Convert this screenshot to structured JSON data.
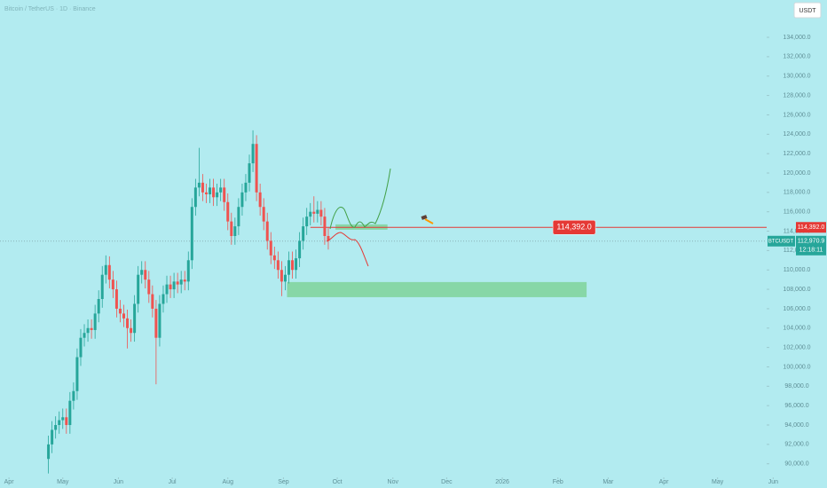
{
  "chart_data": {
    "type": "candlestick",
    "title": "Bitcoin / TetherUS · 1D · Binance",
    "currency": "USDT",
    "symbol": "BTCUSDT",
    "countdown": "12:18:11",
    "up_color": "#26a69a",
    "down_color": "#ef5350",
    "x": [
      22,
      24,
      26,
      28,
      30,
      32,
      34,
      36,
      38,
      40,
      42,
      44,
      46,
      48,
      50,
      52,
      54,
      56,
      58,
      60,
      62,
      64,
      66,
      68,
      70,
      72,
      74,
      76,
      78,
      80,
      82,
      84,
      86,
      88,
      90,
      92,
      94,
      96,
      98,
      100,
      102,
      104,
      106,
      108,
      110,
      112,
      114,
      116,
      118,
      120,
      122,
      124,
      126,
      128,
      130,
      132,
      134,
      136,
      138,
      140,
      142,
      144,
      146,
      148,
      150,
      152,
      154,
      156,
      158,
      160,
      162,
      164,
      166,
      168,
      170,
      172,
      174,
      176,
      178
    ],
    "open": [
      90500,
      92000,
      93500,
      94000,
      94500,
      94800,
      94000,
      96500,
      97500,
      101000,
      103000,
      103500,
      104000,
      103800,
      105500,
      107000,
      109500,
      110500,
      109000,
      108000,
      106000,
      105500,
      105000,
      104000,
      103500,
      106500,
      109500,
      110000,
      109000,
      107500,
      106000,
      103000,
      106500,
      107500,
      108500,
      108000,
      108800,
      108500,
      109000,
      108800,
      111000,
      116500,
      118500,
      119000,
      118000,
      117800,
      118500,
      117500,
      118000,
      118500,
      117000,
      115000,
      113500,
      114500,
      116500,
      118000,
      119000,
      121000,
      123000,
      118000,
      116500,
      115000,
      113000,
      111500,
      111000,
      110000,
      108800,
      109500,
      111000,
      110000,
      111200,
      113000,
      114500,
      115500,
      116000,
      115800,
      116200,
      115500,
      113500
    ],
    "high": [
      92900,
      94400,
      94900,
      95400,
      95700,
      95700,
      97400,
      98400,
      101900,
      103900,
      104400,
      104900,
      104900,
      106400,
      107900,
      110400,
      111500,
      111400,
      109900,
      108900,
      106900,
      106400,
      105900,
      104900,
      107400,
      110400,
      110900,
      110900,
      109900,
      108400,
      106900,
      107400,
      108400,
      109400,
      109400,
      109700,
      109700,
      109900,
      109900,
      111900,
      117400,
      119400,
      122600,
      119900,
      118900,
      119400,
      119400,
      118900,
      119400,
      119400,
      117900,
      115900,
      115400,
      117400,
      118900,
      119900,
      121900,
      124400,
      123900,
      118900,
      117400,
      115900,
      113900,
      112400,
      111900,
      110900,
      110400,
      111900,
      111900,
      112100,
      113900,
      115400,
      116400,
      116900,
      117600,
      117100,
      117100,
      116400,
      114400
    ],
    "low": [
      89000,
      91100,
      92600,
      93100,
      93600,
      93100,
      93100,
      95600,
      96600,
      100100,
      102100,
      102600,
      102900,
      102900,
      104600,
      106100,
      108600,
      108100,
      107100,
      105100,
      104600,
      104100,
      101900,
      102600,
      102600,
      105600,
      108600,
      108100,
      106600,
      105100,
      98200,
      102100,
      105600,
      106600,
      107100,
      107100,
      107600,
      107600,
      107900,
      107900,
      110100,
      115600,
      117600,
      117100,
      116900,
      116900,
      116600,
      116600,
      117100,
      116100,
      114100,
      112600,
      112600,
      113600,
      115600,
      117100,
      118100,
      120100,
      117100,
      115600,
      114100,
      112100,
      110600,
      110100,
      109100,
      107300,
      107900,
      108600,
      109100,
      109100,
      110300,
      112100,
      113600,
      114600,
      114900,
      114900,
      114600,
      112600,
      112100
    ],
    "close": [
      92000,
      93500,
      94000,
      94500,
      94800,
      94000,
      96500,
      97500,
      101000,
      103000,
      103500,
      104000,
      103800,
      105500,
      107000,
      109500,
      110500,
      109000,
      108000,
      106000,
      105500,
      105000,
      104000,
      103500,
      106500,
      109500,
      110000,
      109000,
      107500,
      106000,
      103000,
      106500,
      107500,
      108500,
      108000,
      108800,
      108500,
      109000,
      108800,
      111000,
      116500,
      118500,
      119000,
      118000,
      117800,
      118500,
      117500,
      118000,
      118500,
      117000,
      115000,
      113500,
      114500,
      116500,
      118000,
      119000,
      121000,
      123000,
      118000,
      116500,
      115000,
      113000,
      111500,
      111000,
      110000,
      108800,
      109500,
      111000,
      110000,
      111200,
      113000,
      114500,
      115500,
      116000,
      115800,
      116200,
      115500,
      113500,
      113000
    ],
    "xlim": [
      -5,
      456
    ],
    "ylim": [
      88600,
      137850
    ],
    "xticks": [
      {
        "value": 0,
        "label": "Apr"
      },
      {
        "value": 30,
        "label": "May"
      },
      {
        "value": 61,
        "label": "Jun"
      },
      {
        "value": 91,
        "label": "Jul"
      },
      {
        "value": 122,
        "label": "Aug"
      },
      {
        "value": 153,
        "label": "Sep"
      },
      {
        "value": 183,
        "label": "Oct"
      },
      {
        "value": 214,
        "label": "Nov"
      },
      {
        "value": 244,
        "label": "Dec"
      },
      {
        "value": 275,
        "label": "2026"
      },
      {
        "value": 306,
        "label": "Feb"
      },
      {
        "value": 334,
        "label": "Mar"
      },
      {
        "value": 365,
        "label": "Apr"
      },
      {
        "value": 395,
        "label": "May"
      },
      {
        "value": 426,
        "label": "Jun"
      }
    ],
    "yticks": [
      {
        "value": 90000,
        "label": "90,000.0"
      },
      {
        "value": 92000,
        "label": "92,000.0"
      },
      {
        "value": 94000,
        "label": "94,000.0"
      },
      {
        "value": 96000,
        "label": "96,000.0"
      },
      {
        "value": 98000,
        "label": "98,000.0"
      },
      {
        "value": 100000,
        "label": "100,000.0"
      },
      {
        "value": 102000,
        "label": "102,000.0"
      },
      {
        "value": 104000,
        "label": "104,000.0"
      },
      {
        "value": 106000,
        "label": "106,000.0"
      },
      {
        "value": 108000,
        "label": "108,000.0"
      },
      {
        "value": 110000,
        "label": "110,000.0"
      },
      {
        "value": 112000,
        "label": "112,000.0"
      },
      {
        "value": 114000,
        "label": "114,000.0"
      },
      {
        "value": 116000,
        "label": "116,000.0"
      },
      {
        "value": 118000,
        "label": "118,000.0"
      },
      {
        "value": 120000,
        "label": "120,000.0"
      },
      {
        "value": 122000,
        "label": "122,000.0"
      },
      {
        "value": 124000,
        "label": "124,000.0"
      },
      {
        "value": 126000,
        "label": "126,000.0"
      },
      {
        "value": 128000,
        "label": "128,000.0"
      },
      {
        "value": 130000,
        "label": "130,000.0"
      },
      {
        "value": 132000,
        "label": "132,000.0"
      },
      {
        "value": 134000,
        "label": "134,000.0"
      }
    ],
    "last_price": {
      "value": 112970.9,
      "label": "112,970.9"
    },
    "level": {
      "value": 114392,
      "label": "114,392.0",
      "x": 168,
      "color": "#e53935"
    },
    "zone_color": "#7fd39a",
    "zones": [
      {
        "x": [
          155,
          322
        ],
        "y": [
          107190,
          108750
        ]
      },
      {
        "x": [
          182,
          211
        ],
        "y": [
          114150,
          114700
        ]
      }
    ]
  }
}
